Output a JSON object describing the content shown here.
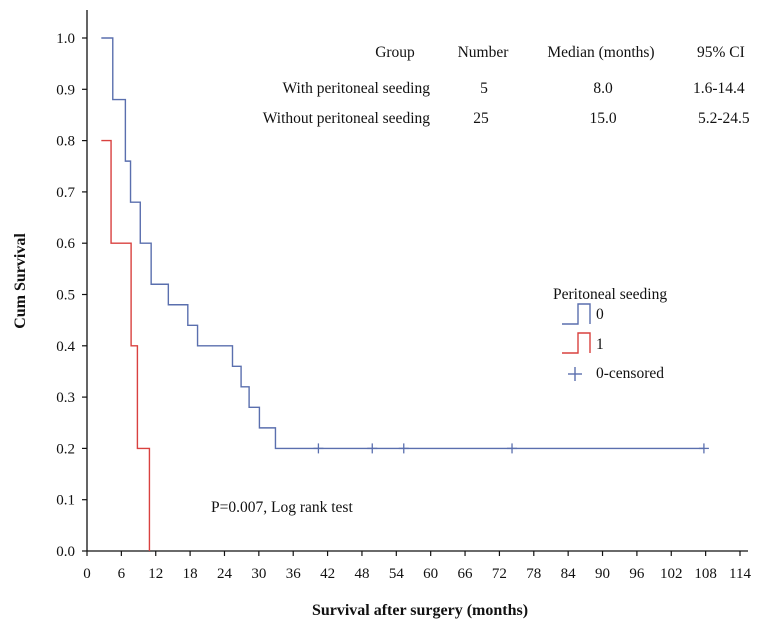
{
  "chart_data": {
    "type": "line",
    "subtype": "kaplan-meier step",
    "xlabel": "Survival after surgery (months)",
    "ylabel": "Cum Survival",
    "xlim": [
      0,
      114
    ],
    "ylim": [
      0,
      1.0
    ],
    "x_ticks": [
      "0",
      "6",
      "12",
      "18",
      "24",
      "30",
      "36",
      "42",
      "48",
      "54",
      "60",
      "66",
      "72",
      "78",
      "84",
      "90",
      "96",
      "102",
      "108",
      "114"
    ],
    "y_ticks": [
      "0.0",
      "0.1",
      "0.2",
      "0.3",
      "0.4",
      "0.5",
      "0.6",
      "0.7",
      "0.8",
      "0.9",
      "1.0"
    ],
    "grid": false,
    "series": [
      {
        "name": "0",
        "color": "#5a6fae",
        "steps": [
          [
            2.5,
            1.0
          ],
          [
            4.5,
            0.88
          ],
          [
            6.7,
            0.76
          ],
          [
            7.6,
            0.68
          ],
          [
            9.3,
            0.6
          ],
          [
            11.2,
            0.52
          ],
          [
            14.2,
            0.48
          ],
          [
            17.6,
            0.44
          ],
          [
            19.3,
            0.4
          ],
          [
            25.4,
            0.36
          ],
          [
            26.9,
            0.32
          ],
          [
            28.3,
            0.28
          ],
          [
            30.1,
            0.24
          ],
          [
            32.9,
            0.2
          ],
          [
            107.7,
            0.2
          ]
        ],
        "censored": [
          [
            40.4,
            0.2
          ],
          [
            49.8,
            0.2
          ],
          [
            55.3,
            0.2
          ],
          [
            74.2,
            0.2
          ],
          [
            107.7,
            0.2
          ]
        ]
      },
      {
        "name": "1",
        "color": "#d9413f",
        "steps": [
          [
            2.5,
            0.8
          ],
          [
            4.2,
            0.6
          ],
          [
            7.7,
            0.4
          ],
          [
            8.8,
            0.2
          ],
          [
            10.9,
            0.0
          ]
        ],
        "censored": []
      }
    ],
    "summary_table": {
      "headers": [
        "Group",
        "Number",
        "Median (months)",
        "95% CI"
      ],
      "rows": [
        [
          "With peritoneal seeding",
          "5",
          "8.0",
          "1.6-14.4"
        ],
        [
          "Without peritoneal seeding",
          "25",
          "15.0",
          "5.2-24.5"
        ]
      ]
    },
    "legend": {
      "title": "Peritoneal seeding",
      "position": "right-middle",
      "entries": [
        {
          "label": "0",
          "marker": "step",
          "color": "#5a6fae"
        },
        {
          "label": "1",
          "marker": "step",
          "color": "#d9413f"
        },
        {
          "label": "0-censored",
          "marker": "plus",
          "color": "#5a6fae"
        }
      ]
    },
    "annotations": [
      "P=0.007, Log rank test"
    ]
  }
}
